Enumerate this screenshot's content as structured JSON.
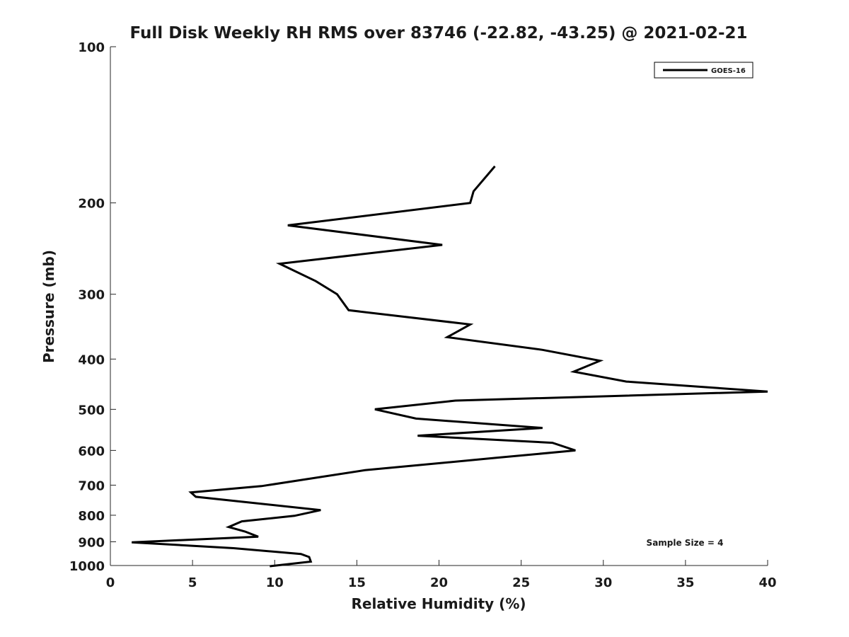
{
  "chart_data": {
    "type": "line",
    "title": "Full Disk Weekly RH RMS over 83746 (-22.82, -43.25) @ 2021-02-21",
    "xlabel": "Relative Humidity (%)",
    "ylabel": "Pressure (mb)",
    "xlim": [
      0,
      40
    ],
    "ylim": [
      1000,
      100
    ],
    "yscale": "log",
    "y_reversed": true,
    "grid": false,
    "legend_position": "top-right",
    "xticks": [
      0,
      5,
      10,
      15,
      20,
      25,
      30,
      35,
      40
    ],
    "xtick_labels": [
      "0",
      "5",
      "10",
      "15",
      "20",
      "25",
      "30",
      "35",
      "40"
    ],
    "yticks": [
      100,
      200,
      300,
      400,
      500,
      600,
      700,
      800,
      900,
      1000
    ],
    "ytick_labels": [
      "100",
      "200",
      "300",
      "400",
      "500",
      "600",
      "700",
      "800",
      "900",
      "1000"
    ],
    "series": [
      {
        "name": "GOES-16",
        "color": "#000000",
        "x": [
          23.4,
          22.1,
          21.9,
          10.8,
          20.2,
          10.3,
          12.5,
          13.8,
          14.5,
          21.9,
          20.5,
          26.3,
          29.8,
          28.2,
          31.4,
          40.0,
          21.0,
          16.1,
          18.6,
          26.3,
          18.7,
          26.9,
          28.3,
          23.5,
          15.5,
          9.2,
          4.9,
          5.2,
          12.8,
          11.2,
          8.0,
          7.2,
          8.2,
          9.0,
          1.3,
          7.5,
          11.6,
          12.1,
          12.2,
          9.7
        ],
        "y": [
          170,
          190,
          200,
          221,
          241,
          262,
          283,
          300,
          322,
          343,
          363,
          384,
          403,
          423,
          442,
          462,
          481,
          500,
          521,
          543,
          562,
          580,
          600,
          620,
          655,
          703,
          723,
          737,
          782,
          802,
          822,
          843,
          860,
          880,
          902,
          926,
          950,
          963,
          983,
          1003
        ]
      }
    ],
    "annotation": "Sample Size = 4"
  }
}
